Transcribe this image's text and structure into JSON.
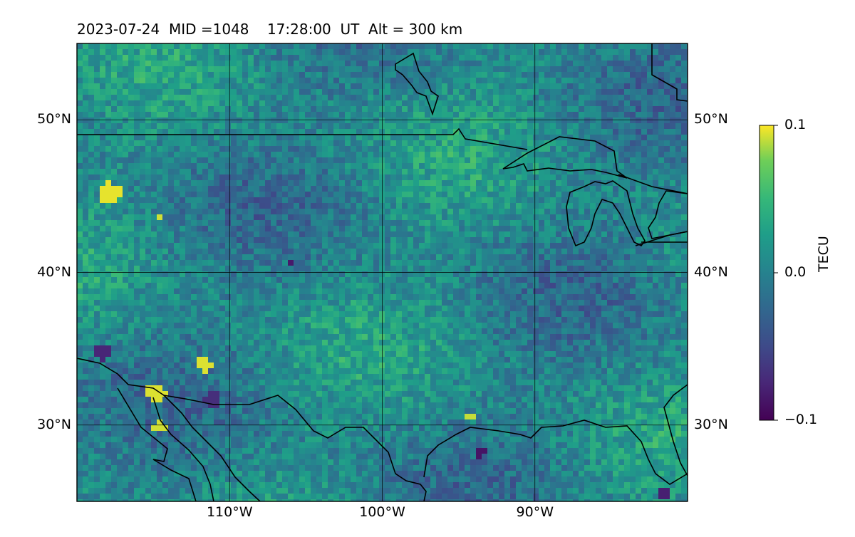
{
  "title": "2023-07-24  MID =1048    17:28:00  UT  Alt = 300 km",
  "map": {
    "lon_range": [
      -120,
      -80
    ],
    "lat_range": [
      25,
      55
    ],
    "lat_ticks": [
      {
        "value": 50,
        "label": "50°N"
      },
      {
        "value": 40,
        "label": "40°N"
      },
      {
        "value": 30,
        "label": "30°N"
      }
    ],
    "lon_ticks": [
      {
        "value": -110,
        "label": "110°W"
      },
      {
        "value": -100,
        "label": "100°W"
      },
      {
        "value": -90,
        "label": "90°W"
      }
    ],
    "grid": true,
    "field": "TEC perturbation",
    "colormap": "viridis"
  },
  "colorbar": {
    "label": "TECU",
    "min": -0.1,
    "max": 0.1,
    "ticks": [
      {
        "value": 0.1,
        "label": "0.1"
      },
      {
        "value": 0.0,
        "label": "0.0"
      },
      {
        "value": -0.1,
        "label": "−0.1"
      }
    ]
  },
  "colors": {
    "viridis_low": "#440154",
    "viridis_mid": "#21908d",
    "viridis_high": "#fde725",
    "coastline": "#000000",
    "gridline": "#000000"
  }
}
